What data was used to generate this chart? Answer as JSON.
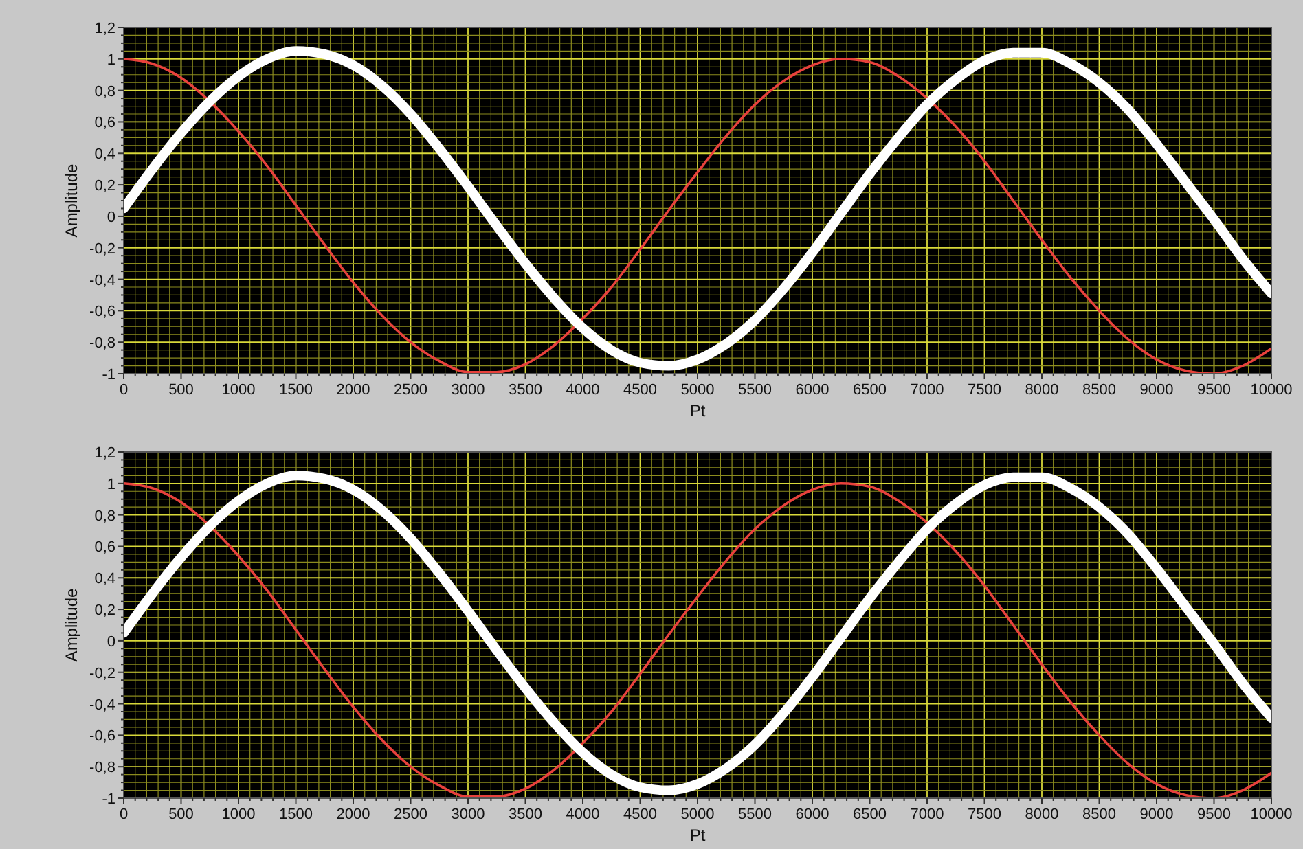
{
  "chart_data": [
    {
      "type": "line",
      "xlabel": "Pt",
      "ylabel": "Amplitude",
      "xlim": [
        0,
        10000
      ],
      "ylim": [
        -1,
        1.2
      ],
      "grid": true,
      "xticks": [
        0,
        {
          "value": 100,
          "label": null
        },
        {
          "value": 200,
          "label": null
        },
        {
          "value": 300,
          "label": null
        },
        {
          "value": 400,
          "label": null
        },
        500,
        {
          "value": 600,
          "label": null
        },
        {
          "value": 700,
          "label": null
        },
        {
          "value": 800,
          "label": null
        },
        {
          "value": 900,
          "label": null
        },
        1000,
        {
          "value": 1100,
          "label": null
        },
        {
          "value": 1200,
          "label": null
        },
        {
          "value": 1300,
          "label": null
        },
        {
          "value": 1400,
          "label": null
        },
        1500,
        {
          "value": 1600,
          "label": null
        },
        {
          "value": 1700,
          "label": null
        },
        {
          "value": 1800,
          "label": null
        },
        {
          "value": 1900,
          "label": null
        },
        2000,
        {
          "value": 2100,
          "label": null
        },
        {
          "value": 2200,
          "label": null
        },
        {
          "value": 2300,
          "label": null
        },
        {
          "value": 2400,
          "label": null
        },
        2500,
        {
          "value": 2600,
          "label": null
        },
        {
          "value": 2700,
          "label": null
        },
        {
          "value": 2800,
          "label": null
        },
        {
          "value": 2900,
          "label": null
        },
        3000,
        {
          "value": 3100,
          "label": null
        },
        {
          "value": 3200,
          "label": null
        },
        {
          "value": 3300,
          "label": null
        },
        {
          "value": 3400,
          "label": null
        },
        3500,
        {
          "value": 3600,
          "label": null
        },
        {
          "value": 3700,
          "label": null
        },
        {
          "value": 3800,
          "label": null
        },
        {
          "value": 3900,
          "label": null
        },
        4000,
        {
          "value": 4100,
          "label": null
        },
        {
          "value": 4200,
          "label": null
        },
        {
          "value": 4300,
          "label": null
        },
        {
          "value": 4400,
          "label": null
        },
        4500,
        {
          "value": 4600,
          "label": null
        },
        {
          "value": 4700,
          "label": null
        },
        {
          "value": 4800,
          "label": null
        },
        {
          "value": 4900,
          "label": null
        },
        5000,
        {
          "value": 5100,
          "label": null
        },
        {
          "value": 5200,
          "label": null
        },
        {
          "value": 5300,
          "label": null
        },
        {
          "value": 5400,
          "label": null
        },
        5500,
        {
          "value": 5600,
          "label": null
        },
        {
          "value": 5700,
          "label": null
        },
        {
          "value": 5800,
          "label": null
        },
        {
          "value": 5900,
          "label": null
        },
        6000,
        {
          "value": 6100,
          "label": null
        },
        {
          "value": 6200,
          "label": null
        },
        {
          "value": 6300,
          "label": null
        },
        {
          "value": 6400,
          "label": null
        },
        6500,
        {
          "value": 6600,
          "label": null
        },
        {
          "value": 6700,
          "label": null
        },
        {
          "value": 6800,
          "label": null
        },
        {
          "value": 6900,
          "label": null
        },
        7000,
        {
          "value": 7100,
          "label": null
        },
        {
          "value": 7200,
          "label": null
        },
        {
          "value": 7300,
          "label": null
        },
        {
          "value": 7400,
          "label": null
        },
        7500,
        {
          "value": 7600,
          "label": null
        },
        {
          "value": 7700,
          "label": null
        },
        {
          "value": 7800,
          "label": null
        },
        {
          "value": 7900,
          "label": null
        },
        8000,
        {
          "value": 8100,
          "label": null
        },
        {
          "value": 8200,
          "label": null
        },
        {
          "value": 8300,
          "label": null
        },
        {
          "value": 8400,
          "label": null
        },
        8500,
        {
          "value": 8600,
          "label": null
        },
        {
          "value": 8700,
          "label": null
        },
        {
          "value": 8800,
          "label": null
        },
        {
          "value": 8900,
          "label": null
        },
        9000,
        {
          "value": 9100,
          "label": null
        },
        {
          "value": 9200,
          "label": null
        },
        {
          "value": 9300,
          "label": null
        },
        {
          "value": 9400,
          "label": null
        },
        9500,
        {
          "value": 9600,
          "label": null
        },
        {
          "value": 9700,
          "label": null
        },
        {
          "value": 9800,
          "label": null
        },
        {
          "value": 9900,
          "label": null
        },
        10000
      ],
      "yticks": [
        -1,
        {
          "value": -0.95,
          "label": null
        },
        {
          "value": -0.9,
          "label": null
        },
        {
          "value": -0.85,
          "label": null
        },
        {
          "value": -0.8,
          "label": "-0,8"
        },
        {
          "value": -0.75,
          "label": null
        },
        {
          "value": -0.7,
          "label": null
        },
        {
          "value": -0.65,
          "label": null
        },
        {
          "value": -0.6,
          "label": "-0,6"
        },
        {
          "value": -0.55,
          "label": null
        },
        {
          "value": -0.5,
          "label": null
        },
        {
          "value": -0.45,
          "label": null
        },
        {
          "value": -0.4,
          "label": "-0,4"
        },
        {
          "value": -0.35,
          "label": null
        },
        {
          "value": -0.3,
          "label": null
        },
        {
          "value": -0.25,
          "label": null
        },
        {
          "value": -0.2,
          "label": "-0,2"
        },
        {
          "value": -0.15,
          "label": null
        },
        {
          "value": -0.1,
          "label": null
        },
        {
          "value": -0.05,
          "label": null
        },
        0,
        {
          "value": 0.05,
          "label": null
        },
        {
          "value": 0.1,
          "label": null
        },
        {
          "value": 0.15,
          "label": null
        },
        {
          "value": 0.2,
          "label": "0,2"
        },
        {
          "value": 0.25,
          "label": null
        },
        {
          "value": 0.3,
          "label": null
        },
        {
          "value": 0.35,
          "label": null
        },
        {
          "value": 0.4,
          "label": "0,4"
        },
        {
          "value": 0.45,
          "label": null
        },
        {
          "value": 0.5,
          "label": null
        },
        {
          "value": 0.55,
          "label": null
        },
        {
          "value": 0.6,
          "label": "0,6"
        },
        {
          "value": 0.65,
          "label": null
        },
        {
          "value": 0.7,
          "label": null
        },
        {
          "value": 0.75,
          "label": null
        },
        {
          "value": 0.8,
          "label": "0,8"
        },
        {
          "value": 0.85,
          "label": null
        },
        {
          "value": 0.9,
          "label": null
        },
        {
          "value": 0.95,
          "label": null
        },
        1,
        {
          "value": 1.05,
          "label": null
        },
        {
          "value": 1.1,
          "label": null
        },
        {
          "value": 1.15,
          "label": null
        },
        {
          "value": 1.2,
          "label": "1,2"
        }
      ],
      "x": [
        0,
        250,
        500,
        750,
        1000,
        1250,
        1500,
        1750,
        2000,
        2250,
        2500,
        2750,
        3000,
        3250,
        3500,
        3750,
        4000,
        4250,
        4500,
        4750,
        5000,
        5250,
        5500,
        5750,
        6000,
        6250,
        6500,
        6750,
        7000,
        7250,
        7500,
        7750,
        8000,
        8250,
        8500,
        8750,
        9000,
        9250,
        9500,
        9750,
        10000
      ],
      "series": [
        {
          "color": "#e8413c",
          "values": [
            1.0,
            0.97,
            0.88,
            0.73,
            0.54,
            0.32,
            0.07,
            -0.18,
            -0.42,
            -0.63,
            -0.8,
            -0.92,
            -0.99,
            -0.99,
            -0.94,
            -0.82,
            -0.65,
            -0.45,
            -0.21,
            0.04,
            0.28,
            0.51,
            0.71,
            0.86,
            0.96,
            1.0,
            0.98,
            0.89,
            0.75,
            0.57,
            0.35,
            0.1,
            -0.15,
            -0.39,
            -0.6,
            -0.78,
            -0.91,
            -0.98,
            -1.0,
            -0.95,
            -0.84
          ]
        },
        {
          "color": "#ffffff",
          "values": [
            0.05,
            0.3,
            0.53,
            0.73,
            0.89,
            1.0,
            1.05,
            1.03,
            0.96,
            0.83,
            0.65,
            0.43,
            0.19,
            -0.06,
            -0.3,
            -0.52,
            -0.71,
            -0.85,
            -0.93,
            -0.95,
            -0.91,
            -0.81,
            -0.66,
            -0.46,
            -0.23,
            0.02,
            0.27,
            0.5,
            0.71,
            0.87,
            0.99,
            1.04,
            1.04,
            0.97,
            0.85,
            0.68,
            0.46,
            0.22,
            -0.02,
            -0.27,
            -0.49
          ]
        }
      ]
    },
    {
      "type": "line",
      "xlabel": "Pt",
      "ylabel": "Amplitude",
      "xlim": [
        0,
        10000
      ],
      "ylim": [
        -1,
        1.2
      ],
      "grid": true,
      "xticks": [
        0,
        {
          "value": 100,
          "label": null
        },
        {
          "value": 200,
          "label": null
        },
        {
          "value": 300,
          "label": null
        },
        {
          "value": 400,
          "label": null
        },
        500,
        {
          "value": 600,
          "label": null
        },
        {
          "value": 700,
          "label": null
        },
        {
          "value": 800,
          "label": null
        },
        {
          "value": 900,
          "label": null
        },
        1000,
        {
          "value": 1100,
          "label": null
        },
        {
          "value": 1200,
          "label": null
        },
        {
          "value": 1300,
          "label": null
        },
        {
          "value": 1400,
          "label": null
        },
        1500,
        {
          "value": 1600,
          "label": null
        },
        {
          "value": 1700,
          "label": null
        },
        {
          "value": 1800,
          "label": null
        },
        {
          "value": 1900,
          "label": null
        },
        2000,
        {
          "value": 2100,
          "label": null
        },
        {
          "value": 2200,
          "label": null
        },
        {
          "value": 2300,
          "label": null
        },
        {
          "value": 2400,
          "label": null
        },
        2500,
        {
          "value": 2600,
          "label": null
        },
        {
          "value": 2700,
          "label": null
        },
        {
          "value": 2800,
          "label": null
        },
        {
          "value": 2900,
          "label": null
        },
        3000,
        {
          "value": 3100,
          "label": null
        },
        {
          "value": 3200,
          "label": null
        },
        {
          "value": 3300,
          "label": null
        },
        {
          "value": 3400,
          "label": null
        },
        3500,
        {
          "value": 3600,
          "label": null
        },
        {
          "value": 3700,
          "label": null
        },
        {
          "value": 3800,
          "label": null
        },
        {
          "value": 3900,
          "label": null
        },
        4000,
        {
          "value": 4100,
          "label": null
        },
        {
          "value": 4200,
          "label": null
        },
        {
          "value": 4300,
          "label": null
        },
        {
          "value": 4400,
          "label": null
        },
        4500,
        {
          "value": 4600,
          "label": null
        },
        {
          "value": 4700,
          "label": null
        },
        {
          "value": 4800,
          "label": null
        },
        {
          "value": 4900,
          "label": null
        },
        5000,
        {
          "value": 5100,
          "label": null
        },
        {
          "value": 5200,
          "label": null
        },
        {
          "value": 5300,
          "label": null
        },
        {
          "value": 5400,
          "label": null
        },
        5500,
        {
          "value": 5600,
          "label": null
        },
        {
          "value": 5700,
          "label": null
        },
        {
          "value": 5800,
          "label": null
        },
        {
          "value": 5900,
          "label": null
        },
        6000,
        {
          "value": 6100,
          "label": null
        },
        {
          "value": 6200,
          "label": null
        },
        {
          "value": 6300,
          "label": null
        },
        {
          "value": 6400,
          "label": null
        },
        6500,
        {
          "value": 6600,
          "label": null
        },
        {
          "value": 6700,
          "label": null
        },
        {
          "value": 6800,
          "label": null
        },
        {
          "value": 6900,
          "label": null
        },
        7000,
        {
          "value": 7100,
          "label": null
        },
        {
          "value": 7200,
          "label": null
        },
        {
          "value": 7300,
          "label": null
        },
        {
          "value": 7400,
          "label": null
        },
        7500,
        {
          "value": 7600,
          "label": null
        },
        {
          "value": 7700,
          "label": null
        },
        {
          "value": 7800,
          "label": null
        },
        {
          "value": 7900,
          "label": null
        },
        8000,
        {
          "value": 8100,
          "label": null
        },
        {
          "value": 8200,
          "label": null
        },
        {
          "value": 8300,
          "label": null
        },
        {
          "value": 8400,
          "label": null
        },
        8500,
        {
          "value": 8600,
          "label": null
        },
        {
          "value": 8700,
          "label": null
        },
        {
          "value": 8800,
          "label": null
        },
        {
          "value": 8900,
          "label": null
        },
        9000,
        {
          "value": 9100,
          "label": null
        },
        {
          "value": 9200,
          "label": null
        },
        {
          "value": 9300,
          "label": null
        },
        {
          "value": 9400,
          "label": null
        },
        9500,
        {
          "value": 9600,
          "label": null
        },
        {
          "value": 9700,
          "label": null
        },
        {
          "value": 9800,
          "label": null
        },
        {
          "value": 9900,
          "label": null
        },
        10000
      ],
      "yticks": [
        -1,
        {
          "value": -0.95,
          "label": null
        },
        {
          "value": -0.9,
          "label": null
        },
        {
          "value": -0.85,
          "label": null
        },
        {
          "value": -0.8,
          "label": "-0,8"
        },
        {
          "value": -0.75,
          "label": null
        },
        {
          "value": -0.7,
          "label": null
        },
        {
          "value": -0.65,
          "label": null
        },
        {
          "value": -0.6,
          "label": "-0,6"
        },
        {
          "value": -0.55,
          "label": null
        },
        {
          "value": -0.5,
          "label": null
        },
        {
          "value": -0.45,
          "label": null
        },
        {
          "value": -0.4,
          "label": "-0,4"
        },
        {
          "value": -0.35,
          "label": null
        },
        {
          "value": -0.3,
          "label": null
        },
        {
          "value": -0.25,
          "label": null
        },
        {
          "value": -0.2,
          "label": "-0,2"
        },
        {
          "value": -0.15,
          "label": null
        },
        {
          "value": -0.1,
          "label": null
        },
        {
          "value": -0.05,
          "label": null
        },
        0,
        {
          "value": 0.05,
          "label": null
        },
        {
          "value": 0.1,
          "label": null
        },
        {
          "value": 0.15,
          "label": null
        },
        {
          "value": 0.2,
          "label": "0,2"
        },
        {
          "value": 0.25,
          "label": null
        },
        {
          "value": 0.3,
          "label": null
        },
        {
          "value": 0.35,
          "label": null
        },
        {
          "value": 0.4,
          "label": "0,4"
        },
        {
          "value": 0.45,
          "label": null
        },
        {
          "value": 0.5,
          "label": null
        },
        {
          "value": 0.55,
          "label": null
        },
        {
          "value": 0.6,
          "label": "0,6"
        },
        {
          "value": 0.65,
          "label": null
        },
        {
          "value": 0.7,
          "label": null
        },
        {
          "value": 0.75,
          "label": null
        },
        {
          "value": 0.8,
          "label": "0,8"
        },
        {
          "value": 0.85,
          "label": null
        },
        {
          "value": 0.9,
          "label": null
        },
        {
          "value": 0.95,
          "label": null
        },
        1,
        {
          "value": 1.05,
          "label": null
        },
        {
          "value": 1.1,
          "label": null
        },
        {
          "value": 1.15,
          "label": null
        },
        {
          "value": 1.2,
          "label": "1,2"
        }
      ],
      "x": [
        0,
        250,
        500,
        750,
        1000,
        1250,
        1500,
        1750,
        2000,
        2250,
        2500,
        2750,
        3000,
        3250,
        3500,
        3750,
        4000,
        4250,
        4500,
        4750,
        5000,
        5250,
        5500,
        5750,
        6000,
        6250,
        6500,
        6750,
        7000,
        7250,
        7500,
        7750,
        8000,
        8250,
        8500,
        8750,
        9000,
        9250,
        9500,
        9750,
        10000
      ],
      "series": [
        {
          "color": "#e8413c",
          "values": [
            1.0,
            0.97,
            0.88,
            0.73,
            0.54,
            0.32,
            0.07,
            -0.18,
            -0.42,
            -0.63,
            -0.8,
            -0.92,
            -0.99,
            -0.99,
            -0.94,
            -0.82,
            -0.65,
            -0.45,
            -0.21,
            0.04,
            0.28,
            0.51,
            0.71,
            0.86,
            0.96,
            1.0,
            0.98,
            0.89,
            0.75,
            0.57,
            0.35,
            0.1,
            -0.15,
            -0.39,
            -0.6,
            -0.78,
            -0.91,
            -0.98,
            -1.0,
            -0.95,
            -0.84
          ]
        },
        {
          "color": "#ffffff",
          "values": [
            0.05,
            0.3,
            0.53,
            0.73,
            0.89,
            1.0,
            1.05,
            1.03,
            0.96,
            0.83,
            0.65,
            0.43,
            0.19,
            -0.06,
            -0.3,
            -0.52,
            -0.71,
            -0.85,
            -0.93,
            -0.95,
            -0.91,
            -0.81,
            -0.66,
            -0.46,
            -0.23,
            0.02,
            0.27,
            0.5,
            0.71,
            0.87,
            0.99,
            1.04,
            1.04,
            0.97,
            0.85,
            0.68,
            0.46,
            0.22,
            -0.02,
            -0.27,
            -0.49
          ]
        }
      ]
    }
  ]
}
